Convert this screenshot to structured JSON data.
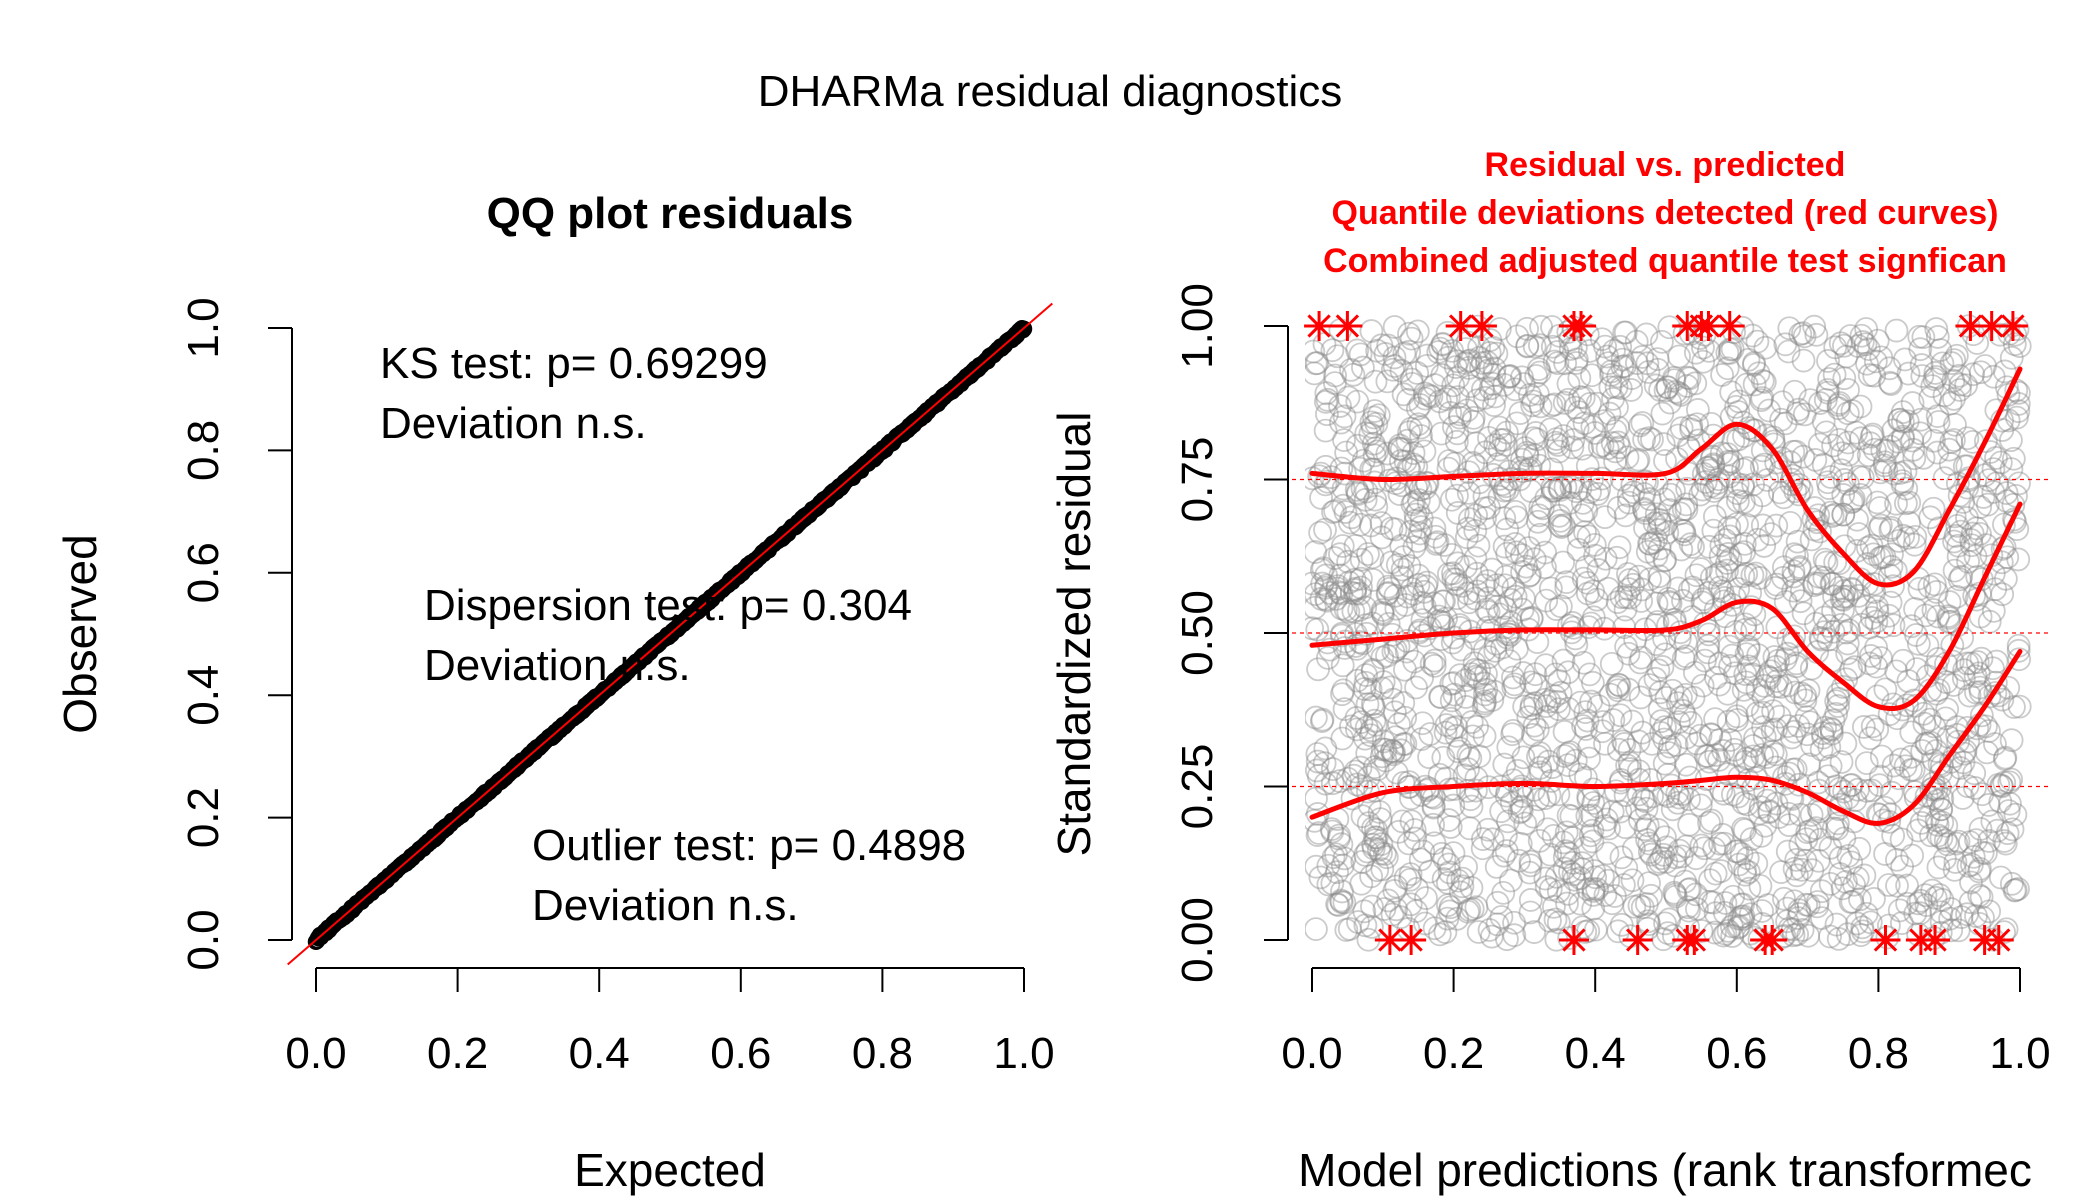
{
  "figure": {
    "title": "DHARMa residual diagnostics"
  },
  "colors": {
    "red": "#ff0000",
    "points_gray": "#8c8c8c",
    "qq_points": "#000000"
  },
  "chart_data": [
    {
      "type": "scatter",
      "title": "QQ plot residuals",
      "xlabel": "Expected",
      "ylabel": "Observed",
      "xlim": [
        0,
        1
      ],
      "ylim": [
        0,
        1
      ],
      "x_ticks": [
        "0.0",
        "0.2",
        "0.4",
        "0.6",
        "0.8",
        "1.0"
      ],
      "y_ticks": [
        "0.0",
        "0.2",
        "0.4",
        "0.6",
        "0.8",
        "1.0"
      ],
      "grid": false,
      "reference_line": {
        "slope": 1,
        "intercept": 0,
        "color": "#ff0000"
      },
      "series": [
        {
          "x": [
            0.0,
            0.1,
            0.2,
            0.3,
            0.4,
            0.5,
            0.6,
            0.7,
            0.8,
            0.9,
            1.0
          ],
          "values": [
            0.0,
            0.1,
            0.2,
            0.3,
            0.4,
            0.5,
            0.6,
            0.7,
            0.8,
            0.9,
            1.0
          ]
        }
      ],
      "annotations": {
        "ks_line1": "KS test: p= 0.69299",
        "ks_line2": "Deviation  n.s.",
        "disp_line1": "Dispersion test: p= 0.304",
        "disp_line2": "Deviation  n.s.",
        "out_line1": "Outlier test: p= 0.4898",
        "out_line2": "Deviation  n.s."
      }
    },
    {
      "type": "scatter",
      "title_lines": [
        "Residual vs. predicted",
        "Quantile deviations detected (red curves)",
        "Combined adjusted quantile test signfican"
      ],
      "xlabel": "Model predictions (rank transformec",
      "ylabel": "Standardized residual",
      "xlim": [
        0,
        1
      ],
      "ylim": [
        0,
        1
      ],
      "x_ticks": [
        "0.0",
        "0.2",
        "0.4",
        "0.6",
        "0.8",
        "1.0"
      ],
      "y_ticks": [
        "0.00",
        "0.25",
        "0.50",
        "0.75",
        "1.00"
      ],
      "grid": false,
      "reference_lines": [
        0.25,
        0.5,
        0.75
      ],
      "quantile_curves": [
        {
          "quantile": 0.75,
          "x": [
            0.0,
            0.1,
            0.2,
            0.3,
            0.4,
            0.5,
            0.55,
            0.6,
            0.65,
            0.7,
            0.75,
            0.8,
            0.85,
            0.9,
            0.95,
            1.0
          ],
          "values": [
            0.76,
            0.75,
            0.755,
            0.76,
            0.76,
            0.76,
            0.8,
            0.84,
            0.8,
            0.7,
            0.63,
            0.58,
            0.6,
            0.7,
            0.81,
            0.93
          ]
        },
        {
          "quantile": 0.5,
          "x": [
            0.0,
            0.1,
            0.2,
            0.3,
            0.4,
            0.5,
            0.55,
            0.6,
            0.65,
            0.7,
            0.75,
            0.8,
            0.85,
            0.9,
            0.95,
            1.0
          ],
          "values": [
            0.48,
            0.49,
            0.5,
            0.505,
            0.505,
            0.505,
            0.52,
            0.55,
            0.54,
            0.47,
            0.42,
            0.38,
            0.39,
            0.47,
            0.59,
            0.71
          ]
        },
        {
          "quantile": 0.25,
          "x": [
            0.0,
            0.1,
            0.2,
            0.3,
            0.4,
            0.5,
            0.55,
            0.6,
            0.65,
            0.7,
            0.75,
            0.8,
            0.85,
            0.9,
            0.95,
            1.0
          ],
          "values": [
            0.2,
            0.24,
            0.25,
            0.255,
            0.25,
            0.255,
            0.26,
            0.265,
            0.26,
            0.24,
            0.21,
            0.19,
            0.22,
            0.3,
            0.38,
            0.47
          ]
        }
      ],
      "outliers_top_x": [
        0.01,
        0.05,
        0.21,
        0.24,
        0.37,
        0.38,
        0.53,
        0.55,
        0.56,
        0.59,
        0.93,
        0.96,
        0.99
      ],
      "outliers_bottom_x": [
        0.11,
        0.14,
        0.37,
        0.46,
        0.53,
        0.54,
        0.64,
        0.65,
        0.81,
        0.86,
        0.88,
        0.95,
        0.97
      ]
    }
  ]
}
